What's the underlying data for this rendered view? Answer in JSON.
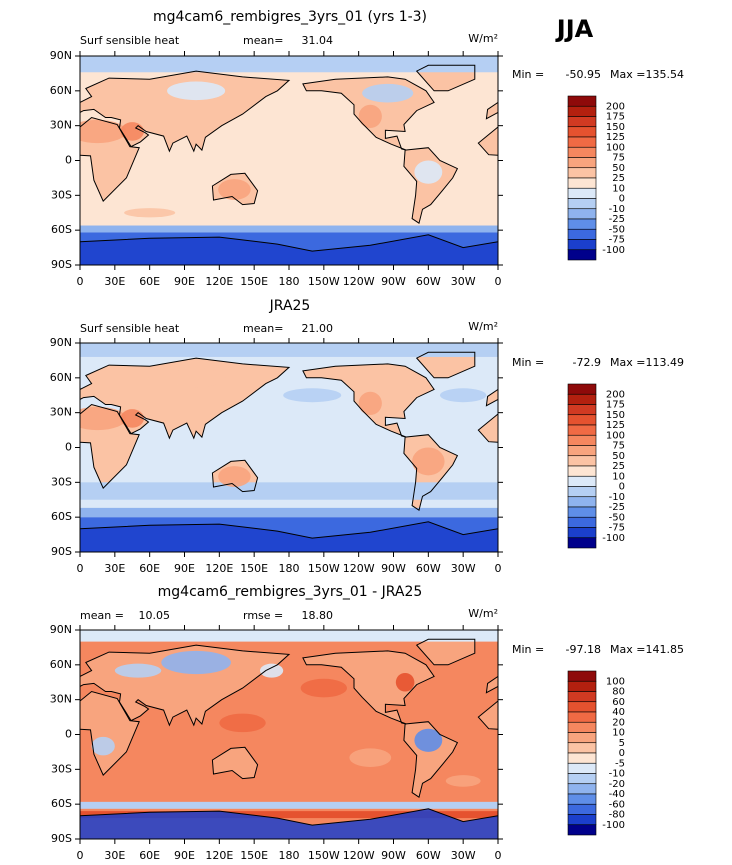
{
  "season": "JJA",
  "panels": [
    {
      "title": "mg4cam6_rembigres_3yrs_01 (yrs 1-3)",
      "variable": "Surf sensible heat",
      "stats": [
        {
          "label": "mean=",
          "value": 31.04
        }
      ],
      "units": "W/m²",
      "min_label": "Min =",
      "min": -50.95,
      "max_label": "Max =",
      "max": 135.54,
      "lat_labels": [
        "90N",
        "60N",
        "30N",
        "0",
        "30S",
        "60S",
        "90S"
      ],
      "lon_labels": [
        "0",
        "30E",
        "60E",
        "90E",
        "120E",
        "150E",
        "180",
        "150W",
        "120W",
        "90W",
        "60W",
        "30W",
        "0"
      ],
      "levels": [
        200,
        175,
        150,
        125,
        100,
        75,
        50,
        25,
        10,
        0,
        -10,
        -25,
        -50,
        -75,
        -100
      ],
      "colors": [
        "#8e0a0a",
        "#b3200f",
        "#d13a22",
        "#e5522f",
        "#f06a44",
        "#f5875f",
        "#f8a47e",
        "#fbc3a4",
        "#fde5d3",
        "#dce9f8",
        "#b5cff3",
        "#8fb3ee",
        "#5f8ee8",
        "#3c69df",
        "#1b3fcc",
        "#00008b"
      ]
    },
    {
      "title": "JRA25",
      "variable": "Surf sensible heat",
      "stats": [
        {
          "label": "mean=",
          "value": 21,
          "value_label": "21.00"
        }
      ],
      "units": "W/m²",
      "min_label": "Min =",
      "min": -72.9,
      "max_label": "Max =",
      "max": 113.49,
      "lat_labels": [
        "90N",
        "60N",
        "30N",
        "0",
        "30S",
        "60S",
        "90S"
      ],
      "lon_labels": [
        "0",
        "30E",
        "60E",
        "90E",
        "120E",
        "150E",
        "180",
        "150W",
        "120W",
        "90W",
        "60W",
        "30W",
        "0"
      ],
      "levels": [
        200,
        175,
        150,
        125,
        100,
        75,
        50,
        25,
        10,
        0,
        -10,
        -25,
        -50,
        -75,
        -100
      ],
      "colors": [
        "#8e0a0a",
        "#b3200f",
        "#d13a22",
        "#e5522f",
        "#f06a44",
        "#f5875f",
        "#f8a47e",
        "#fbc3a4",
        "#fde5d3",
        "#dce9f8",
        "#b5cff3",
        "#8fb3ee",
        "#5f8ee8",
        "#3c69df",
        "#1b3fcc",
        "#00008b"
      ]
    },
    {
      "title": "mg4cam6_rembigres_3yrs_01 - JRA25",
      "stats": [
        {
          "label": "mean =",
          "value": 10.05
        },
        {
          "label": "rmse =",
          "value": 18.8,
          "value_label": "18.80"
        }
      ],
      "units": "W/m²",
      "min_label": "Min =",
      "min": -97.18,
      "max_label": "Max =",
      "max": 141.85,
      "lat_labels": [
        "90N",
        "60N",
        "30N",
        "0",
        "30S",
        "60S",
        "90S"
      ],
      "lon_labels": [
        "0",
        "30E",
        "60E",
        "90E",
        "120E",
        "150E",
        "180",
        "150W",
        "120W",
        "90W",
        "60W",
        "30W",
        "0"
      ],
      "levels": [
        100,
        80,
        60,
        40,
        20,
        10,
        5,
        0,
        -5,
        -10,
        -20,
        -40,
        -60,
        -80,
        -100
      ],
      "colors": [
        "#8e0a0a",
        "#b3200f",
        "#d13a22",
        "#e5522f",
        "#f06a44",
        "#f5875f",
        "#f8a47e",
        "#fbc3a4",
        "#fde5d3",
        "#dce9f8",
        "#b5cff3",
        "#8fb3ee",
        "#5f8ee8",
        "#3c69df",
        "#1b3fcc",
        "#00008b"
      ]
    }
  ]
}
